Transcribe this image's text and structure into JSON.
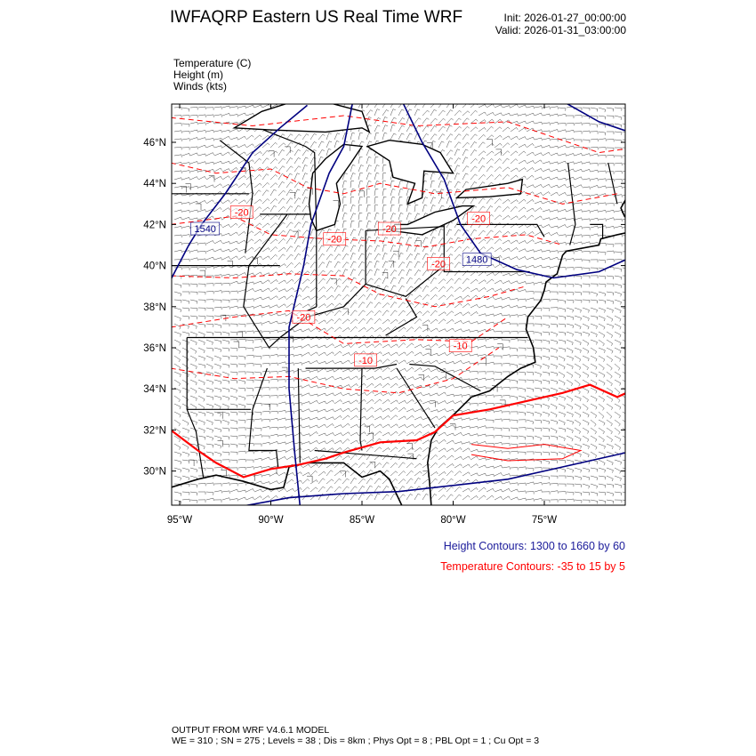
{
  "header": {
    "title": "IWFAQRP Eastern US Real Time WRF",
    "init": "Init: 2026-01-27_00:00:00",
    "valid": "Valid: 2026-01-31_03:00:00"
  },
  "variables": [
    "Temperature   (C)",
    "Height   (m)",
    "Winds   (kts)"
  ],
  "map": {
    "lat_ticks": [
      "46°N",
      "44°N",
      "42°N",
      "40°N",
      "38°N",
      "36°N",
      "34°N",
      "32°N",
      "30°N"
    ],
    "lon_ticks": [
      "95°W",
      "90°W",
      "85°W",
      "80°W",
      "75°W"
    ],
    "height_labels": [
      "1540",
      "1480"
    ],
    "temperature_labels": [
      "-20",
      "-20",
      "-20",
      "-20",
      "-20",
      "-20",
      "-10",
      "-10"
    ],
    "colors": {
      "height": "#000080",
      "temperature": "#ff0000",
      "boundaries": "#000000"
    }
  },
  "legend": {
    "height": "Height Contours: 1300 to 1660 by 60",
    "temperature": "Temperature Contours: -35 to 15 by 5"
  },
  "footer": {
    "line1": "OUTPUT FROM WRF V4.6.1 MODEL",
    "line2": "WE = 310 ; SN = 275 ; Levels = 38 ; Dis = 8km ; Phys Opt = 8 ; PBL Opt = 1 ; Cu Opt = 3"
  }
}
